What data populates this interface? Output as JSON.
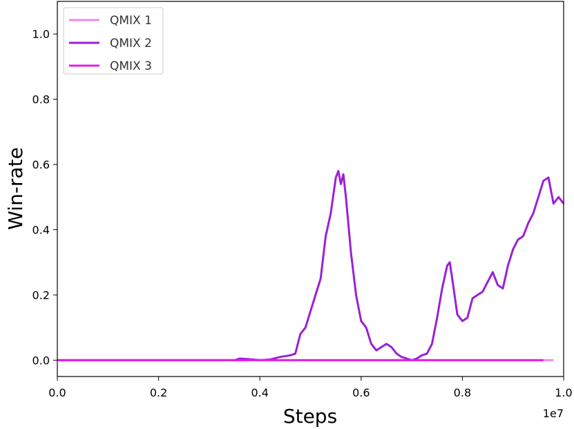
{
  "chart_data": {
    "type": "line",
    "xlabel": "Steps",
    "ylabel": "Win-rate",
    "x_offset_label": "1e7",
    "xlim": [
      0,
      1.0
    ],
    "ylim": [
      -0.05,
      1.1
    ],
    "x_ticks": [
      0.0,
      0.2,
      0.4,
      0.6,
      0.8,
      1.0
    ],
    "x_tick_labels": [
      "0.0",
      "0.2",
      "0.4",
      "0.6",
      "0.8",
      "1.0"
    ],
    "y_ticks": [
      0.0,
      0.2,
      0.4,
      0.6,
      0.8,
      1.0
    ],
    "y_tick_labels": [
      "0.0",
      "0.2",
      "0.4",
      "0.6",
      "0.8",
      "1.0"
    ],
    "grid": false,
    "legend_position": "top-left",
    "series": [
      {
        "name": "QMIX 1",
        "color": "#ee88ee",
        "x": [
          0.0,
          0.98
        ],
        "y": [
          0.0,
          0.0
        ]
      },
      {
        "name": "QMIX 2",
        "color": "#9b1fd6",
        "x": [
          0.0,
          0.35,
          0.36,
          0.38,
          0.4,
          0.42,
          0.44,
          0.46,
          0.47,
          0.48,
          0.49,
          0.5,
          0.51,
          0.52,
          0.53,
          0.54,
          0.55,
          0.555,
          0.56,
          0.565,
          0.57,
          0.58,
          0.59,
          0.6,
          0.61,
          0.62,
          0.63,
          0.64,
          0.65,
          0.66,
          0.67,
          0.68,
          0.69,
          0.7,
          0.71,
          0.72,
          0.73,
          0.74,
          0.75,
          0.76,
          0.77,
          0.775,
          0.78,
          0.79,
          0.8,
          0.81,
          0.82,
          0.83,
          0.84,
          0.85,
          0.86,
          0.87,
          0.88,
          0.89,
          0.9,
          0.91,
          0.92,
          0.93,
          0.94,
          0.95,
          0.96,
          0.97,
          0.98,
          0.99,
          1.0
        ],
        "y": [
          0.0,
          0.0,
          0.005,
          0.003,
          0.0,
          0.002,
          0.01,
          0.015,
          0.02,
          0.08,
          0.1,
          0.15,
          0.2,
          0.25,
          0.38,
          0.45,
          0.56,
          0.58,
          0.54,
          0.57,
          0.5,
          0.33,
          0.2,
          0.12,
          0.1,
          0.05,
          0.03,
          0.04,
          0.05,
          0.04,
          0.02,
          0.01,
          0.005,
          0.0,
          0.005,
          0.015,
          0.02,
          0.05,
          0.13,
          0.22,
          0.29,
          0.3,
          0.25,
          0.14,
          0.12,
          0.13,
          0.19,
          0.2,
          0.21,
          0.24,
          0.27,
          0.23,
          0.22,
          0.29,
          0.34,
          0.37,
          0.38,
          0.42,
          0.45,
          0.5,
          0.55,
          0.56,
          0.48,
          0.5,
          0.48
        ]
      },
      {
        "name": "QMIX 3",
        "color": "#e51ee5",
        "x": [
          0.0,
          0.96
        ],
        "y": [
          0.0,
          0.0
        ]
      }
    ]
  }
}
